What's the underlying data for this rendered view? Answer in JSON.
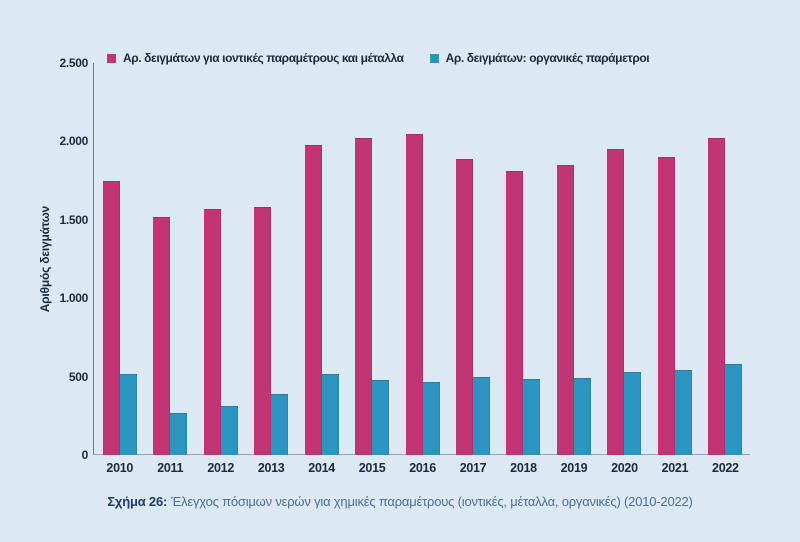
{
  "figure": {
    "caption_prefix": "Σχήμα 26:",
    "caption_text": "Έλεγχος πόσιμων νερών για χημικές παραμέτρους (ιοντικές, μέταλλα, οργανικές) (2010-2022)"
  },
  "colors": {
    "background": "#dce9f2",
    "ionic_metals_bar": "#c13572",
    "organic_bar": "#2b94c1",
    "axis_text": "#1b2a3d",
    "caption_prefix": "#1d3b63",
    "caption_body": "#4c6f96"
  },
  "chart_data": {
    "type": "bar",
    "title": "",
    "xlabel": "",
    "ylabel": "Αριθμός δειγμάτων",
    "ylim": [
      0,
      2500
    ],
    "y_ticks": [
      "2.500",
      "2.000",
      "1.500",
      "1.000",
      "500",
      "0"
    ],
    "grid": false,
    "legend_position": "top-left",
    "categories": [
      "2010",
      "2011",
      "2012",
      "2013",
      "2014",
      "2015",
      "2016",
      "2017",
      "2018",
      "2019",
      "2020",
      "2021",
      "2022"
    ],
    "series": [
      {
        "name": "Αρ. δειγμάτων για ιοντικές παραμέτρους και μέταλλα",
        "color": "#c13572",
        "values": [
          1750,
          1520,
          1570,
          1580,
          1980,
          2020,
          2050,
          1890,
          1810,
          1850,
          1950,
          1900,
          2020
        ]
      },
      {
        "name": "Αρ. δειγμάτων: οργανικές παράμετροι",
        "color": "#2b94c1",
        "values": [
          515,
          265,
          315,
          390,
          515,
          480,
          465,
          495,
          485,
          490,
          530,
          540,
          580
        ]
      }
    ]
  }
}
